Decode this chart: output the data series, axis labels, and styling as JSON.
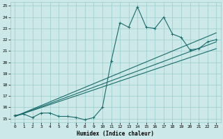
{
  "title": "",
  "xlabel": "Humidex (Indice chaleur)",
  "ylabel": "",
  "xlim": [
    -0.5,
    23.5
  ],
  "ylim": [
    14.7,
    25.3
  ],
  "yticks": [
    15,
    16,
    17,
    18,
    19,
    20,
    21,
    22,
    23,
    24,
    25
  ],
  "xticks": [
    0,
    1,
    2,
    3,
    4,
    5,
    6,
    7,
    8,
    9,
    10,
    11,
    12,
    13,
    14,
    15,
    16,
    17,
    18,
    19,
    20,
    21,
    22,
    23
  ],
  "bg_color": "#cce8e8",
  "grid_color": "#99cccc",
  "line_color": "#1a6b6b",
  "line_width": 0.8,
  "marker": "+",
  "marker_size": 3,
  "series1_x": [
    0,
    1,
    2,
    3,
    4,
    5,
    6,
    7,
    8,
    9,
    10,
    11,
    12,
    13,
    14,
    15,
    16,
    17,
    18,
    19,
    20,
    21,
    22,
    23
  ],
  "series1_y": [
    15.3,
    15.4,
    15.1,
    15.5,
    15.5,
    15.2,
    15.2,
    15.1,
    14.9,
    15.1,
    16.0,
    20.1,
    23.5,
    23.1,
    24.9,
    23.1,
    23.0,
    24.0,
    22.5,
    22.2,
    21.1,
    21.2,
    21.8,
    22.0
  ],
  "series2_x": [
    0,
    23
  ],
  "series2_y": [
    15.2,
    22.6
  ],
  "series3_x": [
    0,
    23
  ],
  "series3_y": [
    15.2,
    21.8
  ],
  "series4_x": [
    0,
    23
  ],
  "series4_y": [
    15.2,
    21.2
  ]
}
